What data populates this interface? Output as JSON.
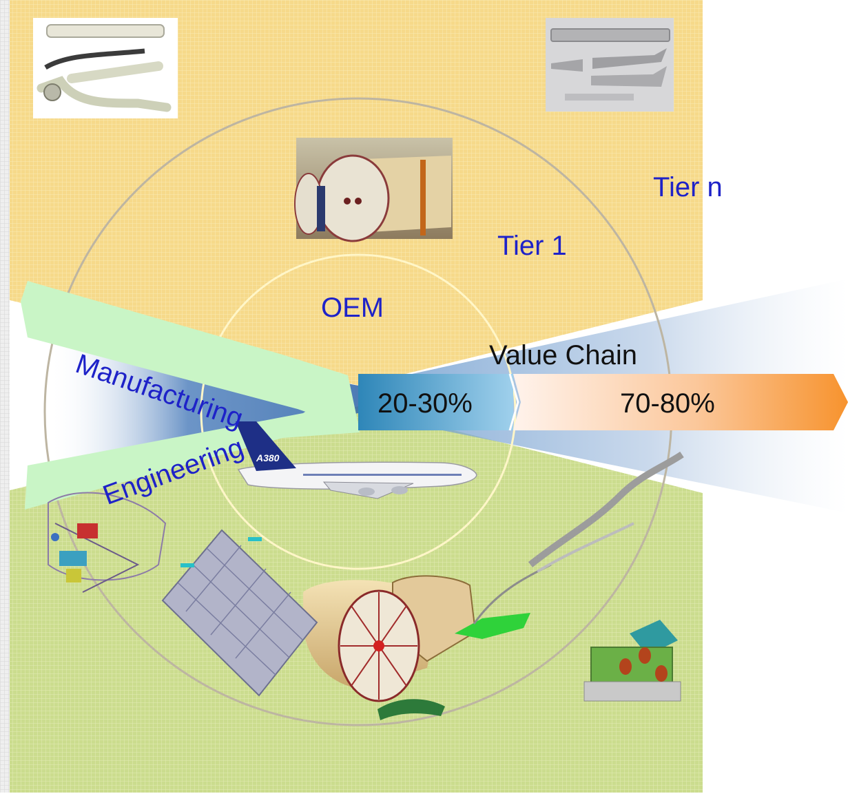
{
  "diagram": {
    "rings": {
      "outer_label": "Tier n",
      "middle_label": "Tier 1",
      "inner_label": "OEM"
    },
    "value_chain": {
      "title": "Value Chain",
      "oem_share": "20-30%",
      "supplier_share": "70-80%"
    },
    "arrows": {
      "top": "Manufacturing",
      "bottom": "Engineering"
    },
    "aircraft_marking": "A380",
    "colors": {
      "top_band": "#f5d98a",
      "bottom_band": "#c9dc8c",
      "label_blue": "#1e22c8",
      "arrow_green": "#c6f3c3",
      "oem_segment": "#3a8fc0",
      "supplier_segment": "#f7932e"
    }
  }
}
